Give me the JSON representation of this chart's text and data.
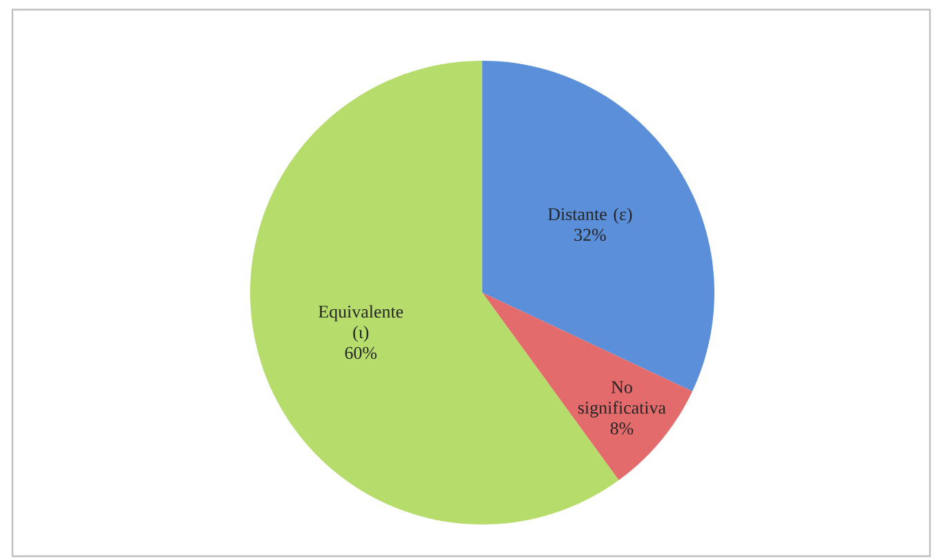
{
  "chart_data": {
    "type": "pie",
    "categories": [
      "Distante (ε)",
      "No significativa",
      "Equivalente (ι)"
    ],
    "values": [
      32,
      8,
      60
    ],
    "value_labels": [
      "32%",
      "8%",
      "60%"
    ],
    "colors": [
      "#5b8fd9",
      "#e36b6b",
      "#b6dc6c"
    ]
  }
}
